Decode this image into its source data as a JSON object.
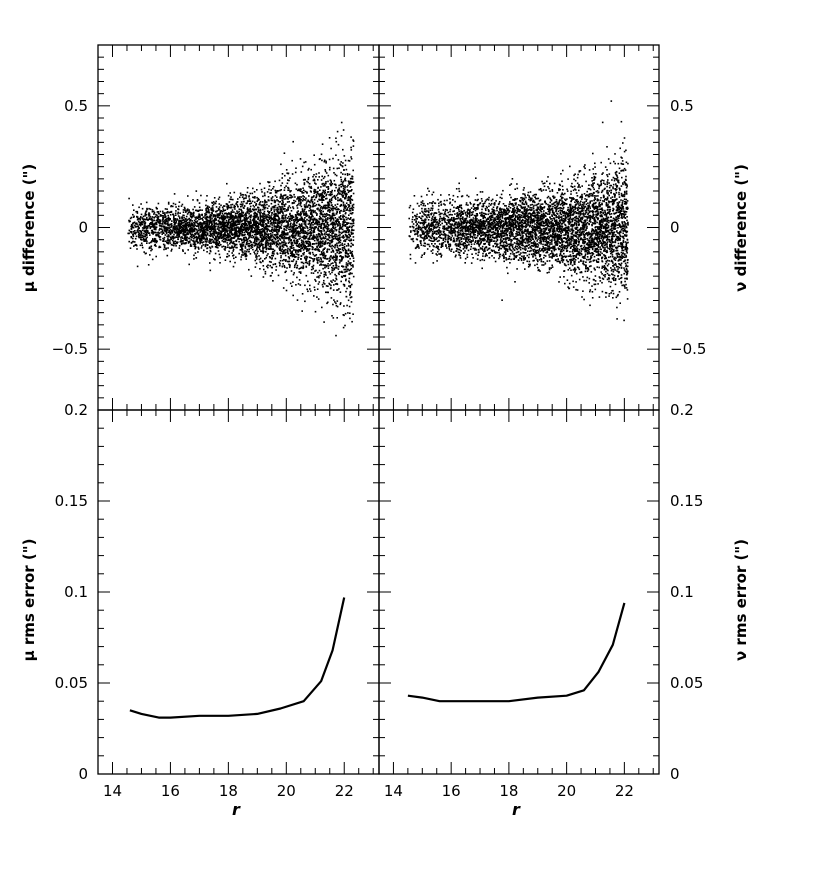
{
  "chart_data": [
    {
      "type": "scatter",
      "panel": "top-left",
      "ylabel": "μ difference (\")",
      "xlim": [
        13.5,
        23.2
      ],
      "ylim": [
        -0.75,
        0.75
      ],
      "yticks": [
        -0.5,
        0,
        0.5
      ],
      "ytick_labels": [
        "−0.5",
        "0",
        "0.5"
      ],
      "ytick_side": "left",
      "points_summary": "dense cloud centered at 0; spread about ±0.08 at r=14.5 widening to about ±0.6 at r=22.3",
      "x_range_of_points": [
        14.5,
        22.3
      ]
    },
    {
      "type": "scatter",
      "panel": "top-right",
      "ylabel": "ν difference (\")",
      "xlim": [
        13.5,
        23.2
      ],
      "ylim": [
        -0.75,
        0.75
      ],
      "yticks": [
        -0.5,
        0,
        0.5
      ],
      "ytick_labels": [
        "−0.5",
        "0",
        "0.5"
      ],
      "ytick_side": "right",
      "points_summary": "dense cloud centered at 0; spread about ±0.1 at r=14.5 widening to about ±0.5 at r=22.1",
      "x_range_of_points": [
        14.5,
        22.1
      ]
    },
    {
      "type": "line",
      "panel": "bottom-left",
      "xlabel": "r",
      "ylabel": "μ rms error (\")",
      "xlim": [
        13.5,
        23.2
      ],
      "ylim": [
        0,
        0.2
      ],
      "xticks": [
        14,
        16,
        18,
        20,
        22
      ],
      "xtick_labels": [
        "14",
        "16",
        "18",
        "20",
        "22"
      ],
      "yticks": [
        0,
        0.05,
        0.1,
        0.15,
        0.2
      ],
      "ytick_labels": [
        "0",
        "0.05",
        "0.1",
        "0.15",
        "0.2"
      ],
      "ytick_side": "left",
      "x": [
        14.6,
        15.0,
        15.6,
        16.0,
        17.0,
        18.0,
        19.0,
        19.8,
        20.6,
        21.2,
        21.6,
        22.0
      ],
      "y": [
        0.035,
        0.033,
        0.031,
        0.031,
        0.032,
        0.032,
        0.033,
        0.036,
        0.04,
        0.051,
        0.068,
        0.097
      ]
    },
    {
      "type": "line",
      "panel": "bottom-right",
      "xlabel": "r",
      "ylabel": "ν rms error (\")",
      "xlim": [
        13.5,
        23.2
      ],
      "ylim": [
        0,
        0.2
      ],
      "xticks": [
        14,
        16,
        18,
        20,
        22
      ],
      "xtick_labels": [
        "14",
        "16",
        "18",
        "20",
        "22"
      ],
      "yticks": [
        0,
        0.05,
        0.1,
        0.15,
        0.2
      ],
      "ytick_labels": [
        "0",
        "0.05",
        "0.1",
        "0.15",
        "0.2"
      ],
      "ytick_side": "right",
      "x": [
        14.5,
        15.0,
        15.6,
        16.0,
        17.0,
        18.0,
        19.0,
        20.0,
        20.6,
        21.1,
        21.6,
        22.0
      ],
      "y": [
        0.043,
        0.042,
        0.04,
        0.04,
        0.04,
        0.04,
        0.042,
        0.043,
        0.046,
        0.056,
        0.071,
        0.094
      ]
    }
  ]
}
